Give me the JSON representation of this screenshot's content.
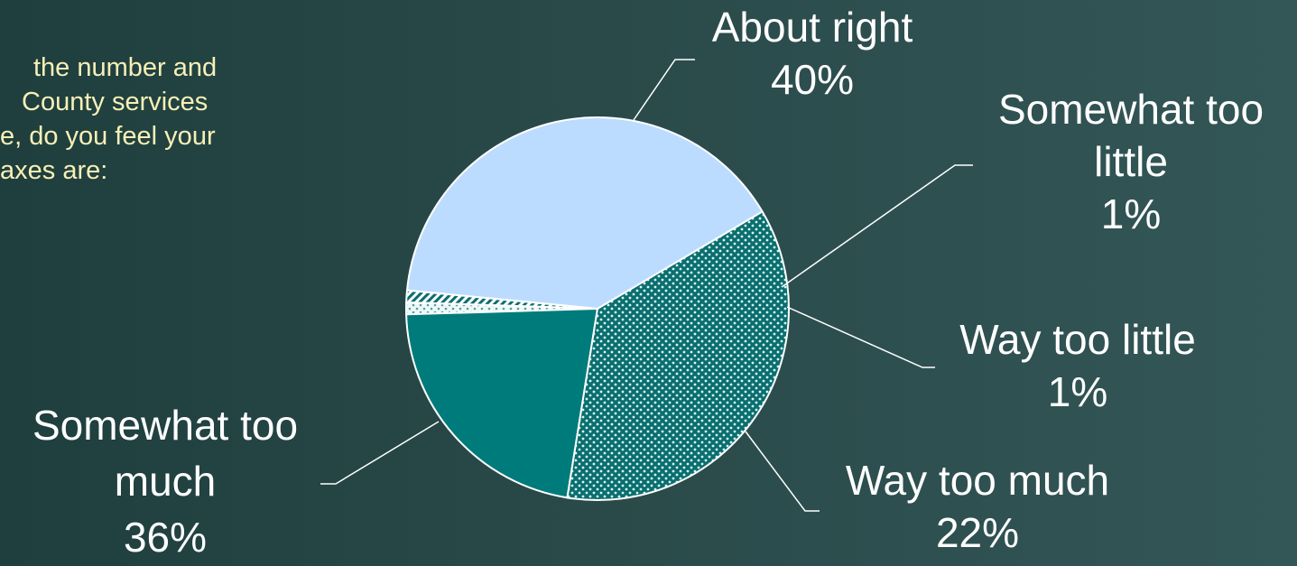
{
  "question": {
    "lines": [
      "the number and",
      "County services",
      "e, do you feel your",
      "axes are:"
    ]
  },
  "chart_data": {
    "type": "pie",
    "slices": [
      {
        "label_lines": [
          "About right",
          "40%"
        ],
        "value": 40,
        "fill": "solid",
        "color": "#bcdcff"
      },
      {
        "label_lines": [
          "Somewhat too",
          "little",
          "1%"
        ],
        "value": 1,
        "fill": "diagonal-hatch",
        "color": "#ffffff"
      },
      {
        "label_lines": [
          "Way too little",
          "1%"
        ],
        "value": 1,
        "fill": "light-dots",
        "color": "#e6f4f4"
      },
      {
        "label_lines": [
          "Way too much",
          "22%"
        ],
        "value": 22,
        "fill": "solid",
        "color": "#007b7b"
      },
      {
        "label_lines": [
          "Somewhat too",
          "much",
          "36%"
        ],
        "value": 36,
        "fill": "dots",
        "color": "#0a6e6e"
      }
    ],
    "colors": {
      "background_left": "#1f3e3e",
      "background_right": "#335656",
      "slice_border": "#ffffff",
      "label_text": "#ffffff",
      "question_text": "#f7f0b6"
    }
  }
}
